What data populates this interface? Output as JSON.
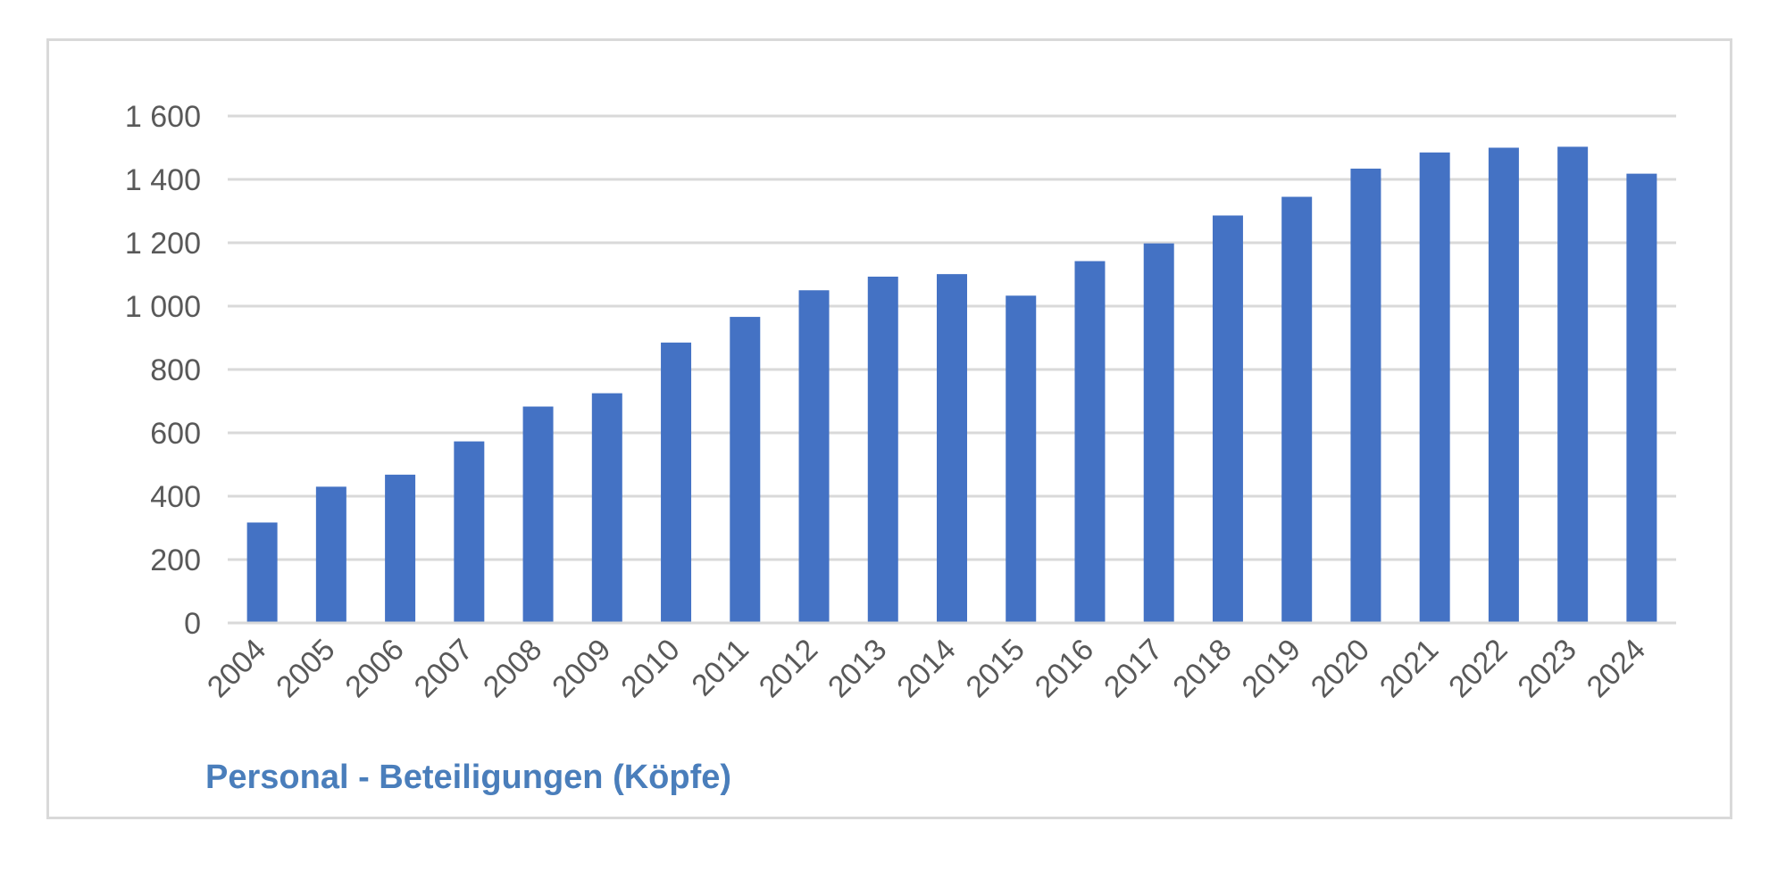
{
  "chart_data": {
    "type": "bar",
    "title": "Personal - Beteiligungen (Köpfe)",
    "xlabel": "",
    "ylabel": "",
    "categories": [
      "2004",
      "2005",
      "2006",
      "2007",
      "2008",
      "2009",
      "2010",
      "2011",
      "2012",
      "2013",
      "2014",
      "2015",
      "2016",
      "2017",
      "2018",
      "2019",
      "2020",
      "2021",
      "2022",
      "2023",
      "2024"
    ],
    "series": [
      {
        "values": [
          317,
          430,
          468,
          573,
          683,
          725,
          885,
          966,
          1050,
          1093,
          1101,
          1033,
          1142,
          1198,
          1286,
          1345,
          1434,
          1485,
          1500,
          1503,
          1418
        ]
      }
    ],
    "y_ticks": [
      "0",
      "200",
      "400",
      "600",
      "800",
      "1 000",
      "1 200",
      "1 400",
      "1 600"
    ],
    "ylim": [
      0,
      1600
    ],
    "grid": true,
    "legend": "none",
    "x_tick_rotation": "-45deg",
    "colors": {
      "bar": "#4472c4",
      "gridline": "#d9d9d9",
      "tick_text": "#595959",
      "title": "#4a7ebb",
      "frame": "#d9d9d9"
    }
  }
}
